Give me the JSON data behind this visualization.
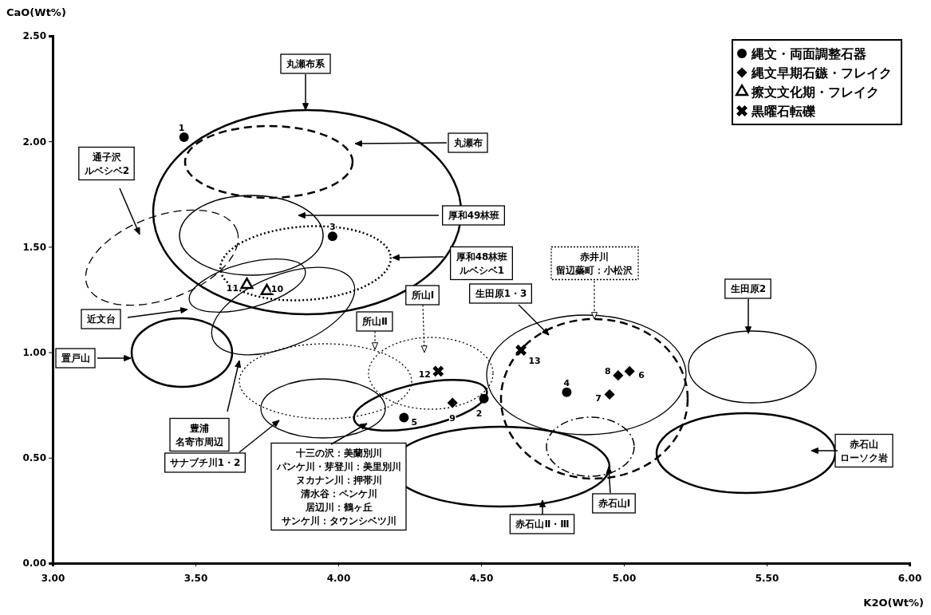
{
  "chart_data": {
    "type": "scatter",
    "xlabel": "K2O(Wt%)",
    "ylabel": "CaO(Wt%)",
    "xlim": [
      3,
      6
    ],
    "ylim": [
      0,
      2.5
    ],
    "xticks": [
      {
        "value": 3,
        "label": "3.00"
      },
      {
        "value": 3.5,
        "label": "3.50"
      },
      {
        "value": 4,
        "label": "4.00"
      },
      {
        "value": 4.5,
        "label": "4.50"
      },
      {
        "value": 5,
        "label": "5.00"
      },
      {
        "value": 5.5,
        "label": "5.50"
      },
      {
        "value": 6,
        "label": "6.00"
      }
    ],
    "yticks": [
      {
        "value": 0,
        "label": "0.00"
      },
      {
        "value": 0.5,
        "label": "0.50"
      },
      {
        "value": 1,
        "label": "1.00"
      },
      {
        "value": 1.5,
        "label": "1.50"
      },
      {
        "value": 2,
        "label": "2.00"
      },
      {
        "value": 2.5,
        "label": "2.50"
      }
    ],
    "legend": "top right",
    "series": [
      {
        "name": "縄文・両面調整石器",
        "color": "#000000",
        "marker": "circle",
        "x": [
          3.46,
          3.98,
          4.8,
          4.51,
          4.23
        ],
        "values": [
          2.02,
          1.55,
          0.81,
          0.78,
          0.69
        ]
      },
      {
        "name": "縄文早期石鏃・フレイク",
        "color": "#000000",
        "marker": "diamond",
        "x": [
          4.4,
          4.98,
          5.02,
          4.95
        ],
        "values": [
          0.76,
          0.89,
          0.91,
          0.8
        ]
      },
      {
        "name": "擦文文化期・フレイク",
        "color": "#000000",
        "marker": "triangle",
        "x": [
          3.68,
          3.75
        ],
        "values": [
          1.32,
          1.29
        ]
      },
      {
        "name": "黒曜石転礫",
        "color": "#000000",
        "marker": "cross",
        "x": [
          4.35,
          4.64
        ],
        "values": [
          0.91,
          1.01
        ]
      }
    ],
    "annotations": [
      {
        "text": "1",
        "x": 3.46,
        "y": 2.02
      },
      {
        "text": "3",
        "x": 3.98,
        "y": 1.55
      },
      {
        "text": "4",
        "x": 4.8,
        "y": 0.81
      },
      {
        "text": "2",
        "x": 4.51,
        "y": 0.78
      },
      {
        "text": "5",
        "x": 4.23,
        "y": 0.69
      },
      {
        "text": "9",
        "x": 4.4,
        "y": 0.76
      },
      {
        "text": "8",
        "x": 4.98,
        "y": 0.89
      },
      {
        "text": "6",
        "x": 5.02,
        "y": 0.91
      },
      {
        "text": "7",
        "x": 4.95,
        "y": 0.8
      },
      {
        "text": "11",
        "x": 3.68,
        "y": 1.32
      },
      {
        "text": "10",
        "x": 3.75,
        "y": 1.29
      },
      {
        "text": "12",
        "x": 4.35,
        "y": 0.91
      },
      {
        "text": "13",
        "x": 4.64,
        "y": 1.01
      },
      "丸瀬布系",
      "丸瀬布",
      "厚和49林班",
      "厚和48林班",
      "ルベシベ1",
      "通子沢",
      "ルベシベ2",
      "近文台",
      "豊浦",
      "名寄市周辺",
      "置戸山",
      "所山Ⅱ",
      "所山Ⅰ",
      "サナブチ川1・2",
      "十三の沢：美蘭別川",
      "パンケ川・芽登川：美里別川",
      "ヌカナン川：押帯川",
      "清水谷：ペンケ川",
      "居辺川：鶴ヶ丘",
      "サンケ川：タウンシベツ川",
      "赤井川",
      "留辺蘂町：小松沢",
      "生田原1・3",
      "生田原2",
      "赤石山",
      "ローソク岩",
      "赤石山Ⅱ・Ⅲ",
      "赤石山Ⅰ"
    ]
  }
}
